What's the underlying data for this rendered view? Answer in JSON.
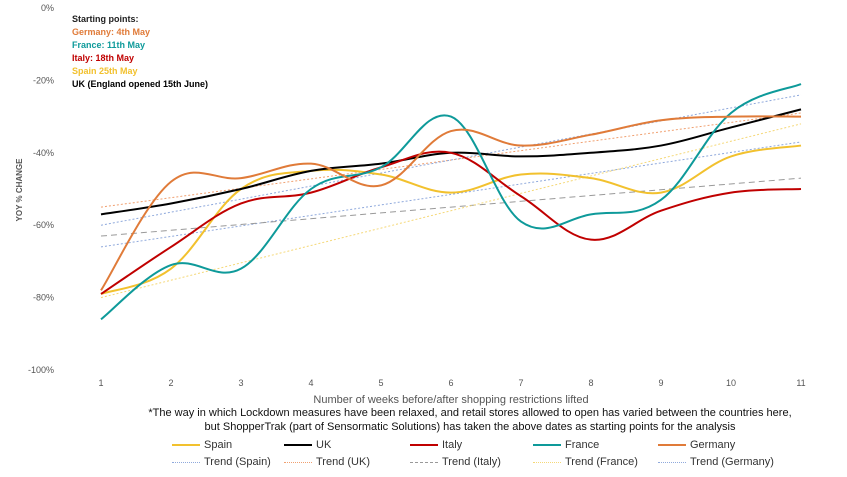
{
  "annotation": {
    "heading": "Starting points:",
    "lines": [
      {
        "text": "Germany: 4th May",
        "color": "#E07B39"
      },
      {
        "text": "France: 11th May",
        "color": "#0E9A9A"
      },
      {
        "text": "Italy: 18th May",
        "color": "#C00000"
      },
      {
        "text": "Spain 25th May",
        "color": "#F2C12E"
      },
      {
        "text": "UK (England opened 15th June)",
        "color": "#000000"
      }
    ]
  },
  "note": {
    "line1": "*The way in which Lockdown measures have been relaxed, and retail stores allowed to open has varied between the countries here,",
    "line2": "but ShopperTrak (part of Sensormatic Solutions) has taken the above dates as starting points for the analysis"
  },
  "chart_data": {
    "type": "line",
    "xlabel": "Number of weeks before/after shopping restrictions lifted",
    "ylabel": "YOY % CHANGE",
    "x": [
      1,
      2,
      3,
      4,
      5,
      6,
      7,
      8,
      9,
      10,
      11
    ],
    "x_tick_labels": [
      "1",
      "2",
      "3",
      "4",
      "5",
      "6",
      "7",
      "8",
      "9",
      "10",
      "11"
    ],
    "ylim": [
      -100,
      0
    ],
    "y_ticks": [
      0,
      -20,
      -40,
      -60,
      -80,
      -100
    ],
    "y_tick_labels": [
      "0%",
      "-20%",
      "-40%",
      "-60%",
      "-80%",
      "-100%"
    ],
    "grid": false,
    "legend_position": "bottom",
    "series": [
      {
        "name": "Spain",
        "color": "#F2C12E",
        "style": "solid",
        "values": [
          -79,
          -72,
          -50,
          -45,
          -46,
          -51,
          -46,
          -47,
          -51,
          -41,
          -38
        ]
      },
      {
        "name": "UK",
        "color": "#000000",
        "style": "solid",
        "values": [
          -57,
          -54,
          -50,
          -45,
          -43,
          -40,
          -41,
          -40,
          -38,
          -33,
          -28
        ]
      },
      {
        "name": "Italy",
        "color": "#C00000",
        "style": "solid",
        "values": [
          -79,
          -66,
          -54,
          -51,
          -44,
          -40,
          -52,
          -64,
          -56,
          -51,
          -50
        ]
      },
      {
        "name": "France",
        "color": "#0E9A9A",
        "style": "solid",
        "values": [
          -86,
          -71,
          -72,
          -50,
          -44,
          -30,
          -59,
          -57,
          -53,
          -29,
          -21
        ]
      },
      {
        "name": "Germany",
        "color": "#E07B39",
        "style": "solid",
        "values": [
          -78,
          -48,
          -47,
          -43,
          -49,
          -34,
          -38,
          -35,
          -31,
          -30,
          -30
        ]
      }
    ],
    "trends": [
      {
        "name": "Trend (Spain)",
        "color": "#8FA9DC",
        "style": "dotted",
        "from": [
          1,
          -66
        ],
        "to": [
          11,
          -37
        ]
      },
      {
        "name": "Trend (UK)",
        "color": "#F0A070",
        "style": "dotted",
        "from": [
          1,
          -55
        ],
        "to": [
          11,
          -29
        ]
      },
      {
        "name": "Trend (Italy)",
        "color": "#999999",
        "style": "dashed",
        "from": [
          1,
          -63
        ],
        "to": [
          11,
          -47
        ]
      },
      {
        "name": "Trend (France)",
        "color": "#F5D878",
        "style": "dotted",
        "from": [
          1,
          -80
        ],
        "to": [
          11,
          -32
        ]
      },
      {
        "name": "Trend (Germany)",
        "color": "#8FA9DC",
        "style": "dotted",
        "from": [
          1,
          -60
        ],
        "to": [
          11,
          -24
        ]
      }
    ]
  }
}
